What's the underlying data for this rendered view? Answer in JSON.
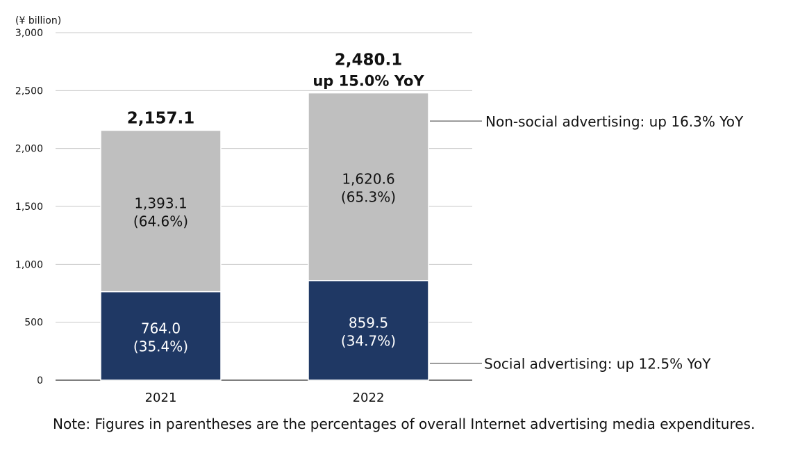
{
  "chart_data": {
    "type": "bar",
    "stacked": true,
    "unit_label": "(¥ billion)",
    "categories": [
      "2021",
      "2022"
    ],
    "ylim": [
      0,
      3000
    ],
    "yticks": [
      0,
      500,
      1000,
      1500,
      2000,
      2500,
      3000
    ],
    "ytick_labels": [
      "0",
      "500",
      "1,000",
      "1,500",
      "2,000",
      "2,500",
      "3,000"
    ],
    "grid": true,
    "series": [
      {
        "name": "Social advertising",
        "color": "#1f3864",
        "values": [
          764.0,
          859.5
        ],
        "value_labels": [
          "764.0",
          "859.5"
        ],
        "share_labels": [
          "(35.4%)",
          "(34.7%)"
        ],
        "annotation": "Social advertising: up 12.5% YoY"
      },
      {
        "name": "Non-social advertising",
        "color": "#bfbfbf",
        "values": [
          1393.1,
          1620.6
        ],
        "value_labels": [
          "1,393.1",
          "1,620.6"
        ],
        "share_labels": [
          "(64.6%)",
          "(65.3%)"
        ],
        "annotation": "Non-social advertising: up 16.3% YoY"
      }
    ],
    "totals": [
      2157.1,
      2480.1
    ],
    "total_labels": [
      "2,157.1",
      "2,480.1"
    ],
    "total_sublabels": [
      "",
      "up 15.0% YoY"
    ]
  },
  "note": "Note: Figures in parentheses are the percentages of overall Internet advertising media expenditures."
}
